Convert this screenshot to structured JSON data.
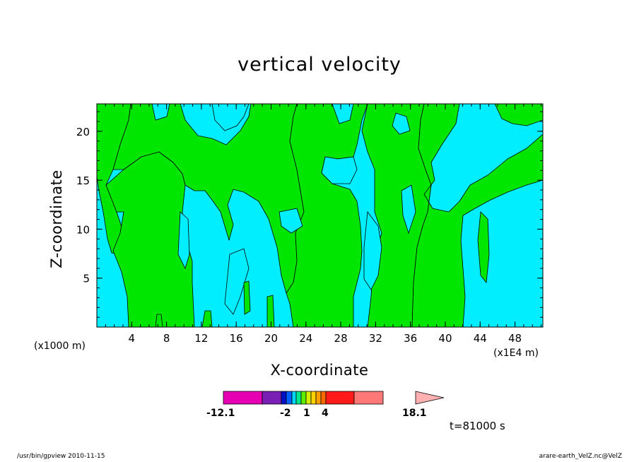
{
  "chart_data": {
    "type": "heatmap",
    "title": "vertical velocity",
    "xlabel": "X-coordinate",
    "ylabel": "Z-coordinate",
    "x_unit_left": "(x1000 m)",
    "x_unit_right": "(x1E4 m)",
    "x_ticks": [
      4,
      8,
      12,
      16,
      20,
      24,
      28,
      32,
      36,
      40,
      44,
      48
    ],
    "y_ticks": [
      5,
      10,
      15,
      20
    ],
    "xlim": [
      0,
      51.2
    ],
    "ylim": [
      0,
      22.8
    ],
    "fill_levels": [
      {
        "name": "negative",
        "range": [
          -2,
          1
        ],
        "color": "#00eeff"
      },
      {
        "name": "positive",
        "range": [
          1,
          4
        ],
        "color": "#00e600"
      }
    ],
    "colorbar": {
      "colors": [
        "#e600b3",
        "#7a1fb3",
        "#0010c8",
        "#0060ff",
        "#00d8ff",
        "#00e88c",
        "#60ee00",
        "#d8ee00",
        "#ffd200",
        "#ffa000",
        "#ff6a00",
        "#ff1a1a",
        "#ff7878",
        "#ffb0b0"
      ],
      "labels": [
        "-12.1",
        "-2",
        "1",
        "4",
        "18.1"
      ]
    },
    "time": "t=81000 s"
  },
  "footer": {
    "left": "/usr/bin/gpview   2010-11-15",
    "right": "arare-earth_VelZ.nc@VelZ"
  }
}
